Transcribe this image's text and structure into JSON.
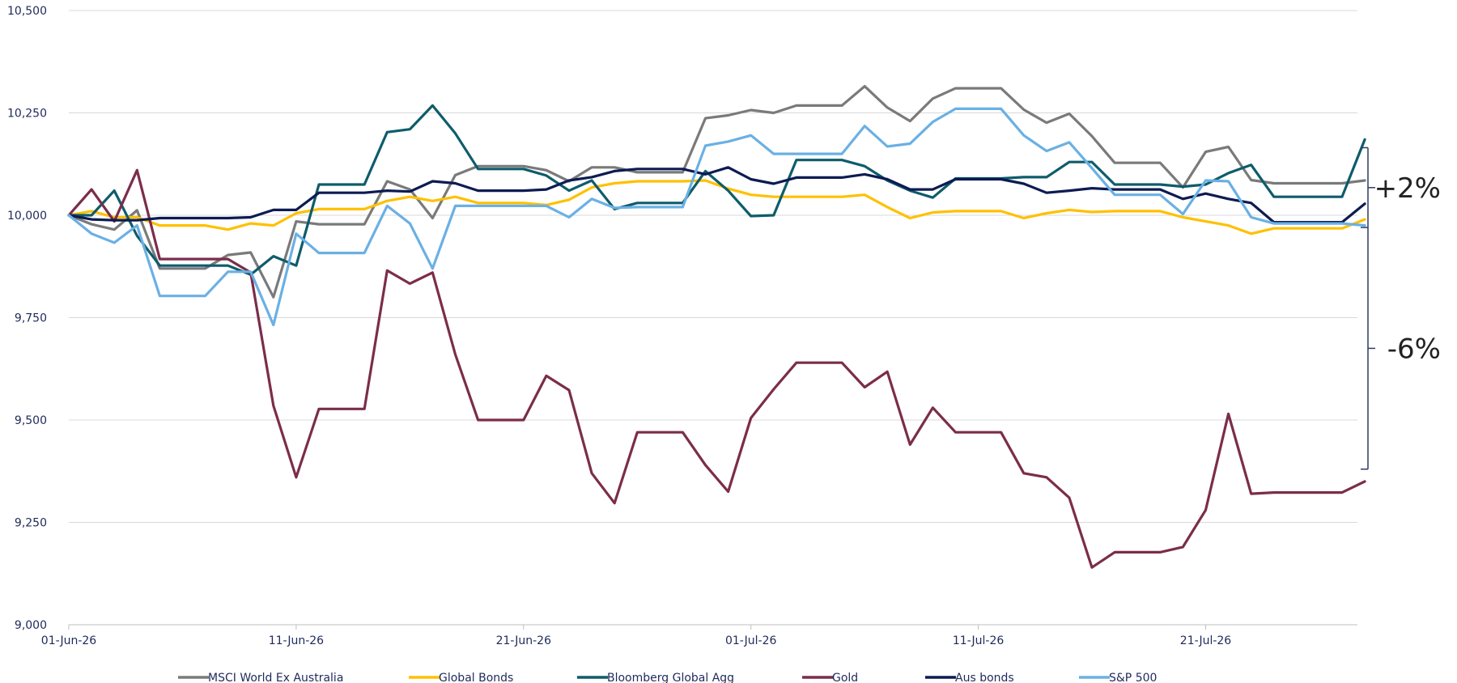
{
  "chart_data": {
    "type": "line",
    "title": "",
    "xlabel": "",
    "ylabel": "",
    "ylim": [
      9000,
      10500
    ],
    "yticks": [
      "9,000",
      "9,250",
      "9,500",
      "9,750",
      "10,000",
      "10,250",
      "10,500"
    ],
    "xticks": [
      "01-Jun-26",
      "11-Jun-26",
      "21-Jun-26",
      "01-Jul-26",
      "11-Jul-26",
      "21-Jul-26"
    ],
    "grid": "horizontal",
    "legend_position": "bottom",
    "x_start": "01-Jun-26",
    "x_days": [
      0,
      1,
      2,
      3,
      4,
      5,
      6,
      7,
      8,
      9,
      10,
      11,
      12,
      13,
      14,
      15,
      16,
      17,
      18,
      19,
      20,
      21,
      22,
      23,
      24,
      25,
      26,
      27,
      28,
      29,
      30,
      31,
      32,
      33,
      34,
      35,
      36,
      37,
      38,
      39,
      40,
      41,
      42,
      43,
      44,
      45,
      46,
      47,
      48,
      49,
      50,
      51,
      52,
      53,
      54,
      55,
      56,
      57
    ],
    "series": [
      {
        "name": "MSCI World Ex Australia",
        "color": "#7a7a7a",
        "values": [
          10000,
          9978,
          9965,
          10012,
          9870,
          9870,
          9870,
          9903,
          9909,
          9800,
          9985,
          9978,
          9978,
          9978,
          10083,
          10063,
          9993,
          10098,
          10120,
          10120,
          10120,
          10110,
          10083,
          10117,
          10117,
          10105,
          10105,
          10105,
          10237,
          10244,
          10257,
          10250,
          10268,
          10268,
          10268,
          10315,
          10263,
          10230,
          10285,
          10310,
          10310,
          10310,
          10258,
          10226,
          10248,
          10193,
          10128,
          10128,
          10128,
          10068,
          10155,
          10167,
          10086,
          10078,
          10078,
          10078,
          10078,
          10085
        ]
      },
      {
        "name": "Global Bonds",
        "color": "#ffc000",
        "values": [
          10000,
          10010,
          9995,
          9995,
          9975,
          9975,
          9975,
          9965,
          9980,
          9975,
          10005,
          10015,
          10015,
          10015,
          10035,
          10045,
          10035,
          10045,
          10030,
          10030,
          10030,
          10025,
          10038,
          10068,
          10078,
          10083,
          10083,
          10083,
          10085,
          10065,
          10050,
          10045,
          10045,
          10045,
          10045,
          10050,
          10020,
          9993,
          10007,
          10010,
          10010,
          10010,
          9993,
          10005,
          10013,
          10008,
          10010,
          10010,
          10010,
          9995,
          9985,
          9975,
          9955,
          9968,
          9968,
          9968,
          9968,
          9990
        ]
      },
      {
        "name": "Bloomberg Global Agg",
        "color": "#0e5c6b",
        "values": [
          10000,
          10000,
          10060,
          9950,
          9877,
          9877,
          9877,
          9877,
          9855,
          9900,
          9877,
          10075,
          10075,
          10075,
          10203,
          10210,
          10268,
          10200,
          10113,
          10113,
          10113,
          10097,
          10060,
          10085,
          10015,
          10030,
          10030,
          10030,
          10108,
          10060,
          9998,
          10000,
          10135,
          10135,
          10135,
          10120,
          10085,
          10060,
          10043,
          10090,
          10090,
          10090,
          10093,
          10093,
          10130,
          10130,
          10075,
          10075,
          10075,
          10070,
          10075,
          10103,
          10123,
          10045,
          10045,
          10045,
          10045,
          10185
        ]
      },
      {
        "name": "Gold",
        "color": "#7b2d4a",
        "values": [
          10000,
          10063,
          9985,
          10110,
          9893,
          9893,
          9893,
          9893,
          9860,
          9535,
          9360,
          9527,
          9527,
          9527,
          9865,
          9833,
          9860,
          9660,
          9500,
          9500,
          9500,
          9608,
          9573,
          9370,
          9297,
          9470,
          9470,
          9470,
          9390,
          9325,
          9505,
          9575,
          9640,
          9640,
          9640,
          9580,
          9618,
          9440,
          9530,
          9470,
          9470,
          9470,
          9370,
          9360,
          9310,
          9140,
          9177,
          9177,
          9177,
          9190,
          9280,
          9515,
          9320,
          9323,
          9323,
          9323,
          9323,
          9350
        ]
      },
      {
        "name": "Aus bonds",
        "color": "#0d1b52",
        "values": [
          10000,
          9990,
          9988,
          9988,
          9993,
          9993,
          9993,
          9993,
          9995,
          10013,
          10013,
          10055,
          10055,
          10055,
          10060,
          10058,
          10083,
          10078,
          10060,
          10060,
          10060,
          10063,
          10085,
          10093,
          10108,
          10113,
          10113,
          10113,
          10100,
          10117,
          10088,
          10077,
          10092,
          10092,
          10092,
          10100,
          10088,
          10063,
          10063,
          10088,
          10088,
          10088,
          10077,
          10055,
          10060,
          10066,
          10063,
          10063,
          10063,
          10040,
          10053,
          10040,
          10030,
          9983,
          9983,
          9983,
          9983,
          10028
        ]
      },
      {
        "name": "S&P 500",
        "color": "#6ab0e4",
        "values": [
          10000,
          9955,
          9933,
          9975,
          9803,
          9803,
          9803,
          9862,
          9862,
          9732,
          9955,
          9908,
          9908,
          9908,
          10023,
          9980,
          9870,
          10023,
          10023,
          10023,
          10023,
          10023,
          9995,
          10040,
          10018,
          10020,
          10020,
          10020,
          10170,
          10180,
          10195,
          10150,
          10150,
          10150,
          10150,
          10218,
          10168,
          10175,
          10228,
          10260,
          10260,
          10260,
          10195,
          10157,
          10178,
          10115,
          10050,
          10050,
          10050,
          10003,
          10085,
          10083,
          9995,
          9980,
          9980,
          9980,
          9980,
          9975
        ]
      }
    ],
    "annotations": [
      {
        "label": "+2%",
        "from": 10165,
        "to": 9970
      },
      {
        "label": "-6%",
        "from": 9970,
        "to": 9380
      }
    ]
  }
}
